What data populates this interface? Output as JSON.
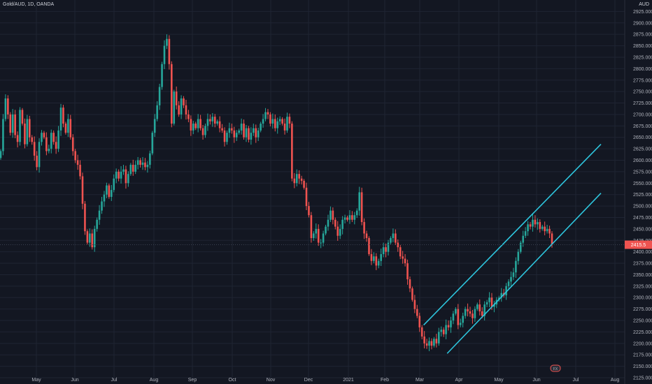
{
  "header": {
    "symbol": "Gold/AUD, 1D, OANDA",
    "currency": "AUD"
  },
  "colors": {
    "background": "#131722",
    "grid": "#1f2433",
    "text": "#b2b5be",
    "up": "#26a69a",
    "down": "#ef5350",
    "channel": "#2ec6de",
    "price_line": "#ef5350",
    "crosshair": "#3b4150"
  },
  "chart_data": {
    "type": "candlestick",
    "price_scale": {
      "min": 2125,
      "max": 2950,
      "step": 25
    },
    "y_ticks": [
      "2125.000",
      "2150.000",
      "2175.000",
      "2200.000",
      "2225.000",
      "2250.000",
      "2275.000",
      "2300.000",
      "2325.000",
      "2350.000",
      "2375.000",
      "2400.000",
      "2425.000",
      "2450.000",
      "2475.000",
      "2500.000",
      "2525.000",
      "2550.000",
      "2575.000",
      "2600.000",
      "2625.000",
      "2650.000",
      "2675.000",
      "2700.000",
      "2725.000",
      "2750.000",
      "2775.000",
      "2800.000",
      "2825.000",
      "2850.000",
      "2875.000",
      "2900.000",
      "2925.000"
    ],
    "x_ticks": [
      "May",
      "Jun",
      "Jul",
      "Aug",
      "Sep",
      "Oct",
      "Nov",
      "Dec",
      "2021",
      "Feb",
      "Mar",
      "Apr",
      "May",
      "Jun",
      "Jul",
      "Aug"
    ],
    "last_price": 2415.5,
    "current_price_label": "2415.5",
    "badge_label": "FX",
    "channel": {
      "upper": {
        "start": [
          "2021-03-04",
          2240
        ],
        "end": [
          "2021-08-01",
          2635
        ]
      },
      "lower": {
        "start": [
          "2021-03-22",
          2178
        ],
        "end": [
          "2021-08-01",
          2528
        ]
      }
    },
    "closes": [
      2620,
      2690,
      2735,
      2700,
      2660,
      2700,
      2655,
      2640,
      2710,
      2680,
      2635,
      2690,
      2650,
      2640,
      2610,
      2585,
      2640,
      2660,
      2650,
      2620,
      2625,
      2660,
      2640,
      2625,
      2665,
      2715,
      2680,
      2660,
      2690,
      2650,
      2620,
      2600,
      2590,
      2565,
      2505,
      2445,
      2420,
      2440,
      2410,
      2450,
      2470,
      2490,
      2510,
      2525,
      2545,
      2520,
      2535,
      2560,
      2575,
      2560,
      2575,
      2580,
      2550,
      2570,
      2590,
      2575,
      2590,
      2600,
      2590,
      2595,
      2585,
      2590,
      2615,
      2660,
      2690,
      2720,
      2760,
      2810,
      2850,
      2865,
      2810,
      2680,
      2750,
      2720,
      2700,
      2735,
      2720,
      2700,
      2690,
      2665,
      2680,
      2670,
      2690,
      2670,
      2655,
      2675,
      2690,
      2685,
      2695,
      2680,
      2685,
      2670,
      2665,
      2640,
      2660,
      2670,
      2665,
      2650,
      2660,
      2665,
      2680,
      2650,
      2670,
      2645,
      2660,
      2670,
      2650,
      2665,
      2680,
      2690,
      2705,
      2700,
      2680,
      2690,
      2670,
      2685,
      2690,
      2680,
      2665,
      2695,
      2680,
      2560,
      2550,
      2570,
      2560,
      2555,
      2540,
      2500,
      2480,
      2430,
      2440,
      2450,
      2420,
      2420,
      2440,
      2455,
      2470,
      2490,
      2470,
      2455,
      2435,
      2450,
      2470,
      2475,
      2470,
      2480,
      2470,
      2480,
      2490,
      2530,
      2465,
      2440,
      2430,
      2395,
      2380,
      2390,
      2370,
      2380,
      2395,
      2410,
      2400,
      2420,
      2430,
      2440,
      2420,
      2410,
      2390,
      2385,
      2375,
      2340,
      2320,
      2295,
      2275,
      2260,
      2235,
      2215,
      2200,
      2195,
      2205,
      2195,
      2210,
      2200,
      2225,
      2230,
      2220,
      2240,
      2235,
      2250,
      2265,
      2275,
      2240,
      2245,
      2260,
      2275,
      2270,
      2265,
      2255,
      2275,
      2285,
      2270,
      2260,
      2285,
      2290,
      2300,
      2280,
      2285,
      2295,
      2300,
      2310,
      2305,
      2325,
      2335,
      2345,
      2355,
      2380,
      2400,
      2420,
      2435,
      2445,
      2460,
      2455,
      2470,
      2460,
      2465,
      2450,
      2455,
      2445,
      2450,
      2440,
      2415
    ]
  }
}
